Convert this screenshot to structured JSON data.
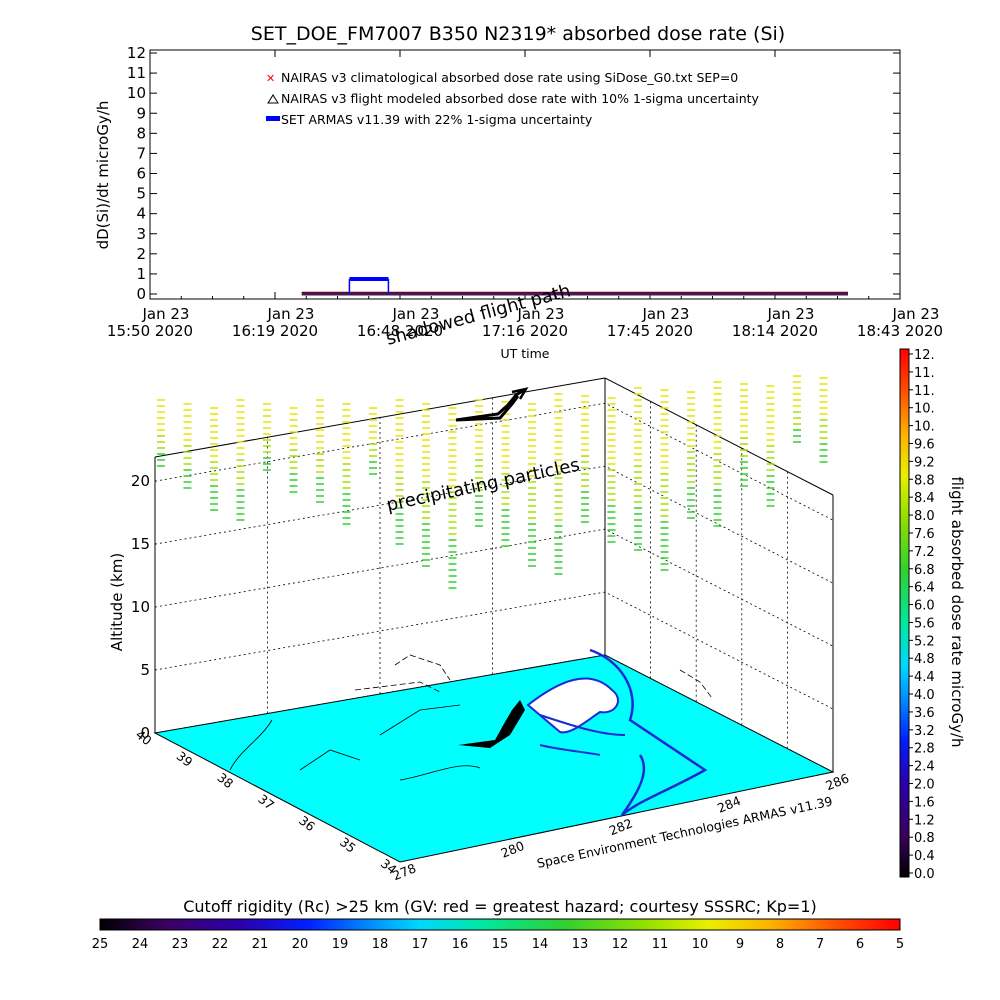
{
  "title": "SET_DOE_FM7007  B350 N2319* absorbed dose rate (Si)",
  "chart_data": [
    {
      "type": "line",
      "ylabel": "dD(Si)/dt microGy/h",
      "xlabel": "UT time",
      "ylim": [
        0,
        12
      ],
      "yticks": [
        "0",
        "1",
        "2",
        "3",
        "4",
        "5",
        "6",
        "7",
        "8",
        "9",
        "10",
        "11",
        "12"
      ],
      "xticks": [
        {
          "date": "Jan 23",
          "time": "15:50 2020"
        },
        {
          "date": "Jan 23",
          "time": "16:19 2020"
        },
        {
          "date": "Jan 23",
          "time": "16:48 2020"
        },
        {
          "date": "Jan 23",
          "time": "17:16 2020"
        },
        {
          "date": "Jan 23",
          "time": "17:45 2020"
        },
        {
          "date": "Jan 23",
          "time": "18:14 2020"
        },
        {
          "date": "Jan 23",
          "time": "18:43 2020"
        }
      ],
      "xrange": [
        "15:50",
        "18:43"
      ],
      "legend": [
        {
          "label": "NAIRAS v3 climatological absorbed dose rate using SiDose_G0.txt SEP=0",
          "color": "#ff0000",
          "marker": "x"
        },
        {
          "label": "NAIRAS v3 flight modeled absorbed dose rate with 10% 1-sigma uncertainty",
          "color": "#000000",
          "marker": "triangle"
        },
        {
          "label": "SET ARMAS v11.39 with 22% 1-sigma uncertainty",
          "color": "#0000ff",
          "marker": "dot"
        }
      ],
      "legend_position": "top",
      "series": [
        {
          "name": "NAIRAS v3 climatological absorbed dose rate using SiDose_G0.txt SEP=0",
          "x_start": "16:25",
          "x_end": "18:31",
          "values": [
            0.05
          ]
        },
        {
          "name": "NAIRAS v3 flight modeled absorbed dose rate with 10% 1-sigma uncertainty",
          "x_start": "16:25",
          "x_end": "18:31",
          "values": [
            0.04
          ]
        },
        {
          "name": "SET ARMAS v11.39 with 22% 1-sigma uncertainty",
          "x_start": "16:36",
          "x_end": "16:45",
          "values": [
            0.75
          ]
        }
      ]
    },
    {
      "type": "scatter",
      "zlabel": "Altitude (km)",
      "zticks": [
        "0",
        "5",
        "10",
        "15",
        "20"
      ],
      "zlim": [
        0,
        22
      ],
      "lat_ticks": [
        "40",
        "39",
        "38",
        "37",
        "36",
        "35",
        "34"
      ],
      "lon_ticks": [
        "278",
        "280",
        "282",
        "284",
        "286"
      ],
      "annotations": [
        "shadowed flight path",
        "precipitating particles"
      ],
      "credit": "Space Environment Technologies ARMAS v11.39",
      "colorbar": {
        "label": "flight absorbed dose rate microGy/h",
        "ticks": [
          "12.",
          "11.",
          "11.",
          "10.",
          "10.",
          "9.6",
          "9.2",
          "8.8",
          "8.4",
          "8.0",
          "7.6",
          "7.2",
          "6.8",
          "6.4",
          "6.0",
          "5.6",
          "5.2",
          "4.8",
          "4.4",
          "4.0",
          "3.6",
          "3.2",
          "2.8",
          "2.4",
          "2.0",
          "1.6",
          "1.2",
          "0.8",
          "0.4",
          "0.0"
        ]
      }
    },
    {
      "type": "heatmap",
      "label": "Cutoff rigidity (Rc) >25 km (GV: red = greatest hazard; courtesy SSSRC; Kp=1)",
      "ticks": [
        "25",
        "24",
        "23",
        "22",
        "21",
        "20",
        "19",
        "18",
        "17",
        "16",
        "15",
        "14",
        "13",
        "12",
        "11",
        "10",
        "9",
        "8",
        "7",
        "6",
        "5"
      ]
    }
  ]
}
